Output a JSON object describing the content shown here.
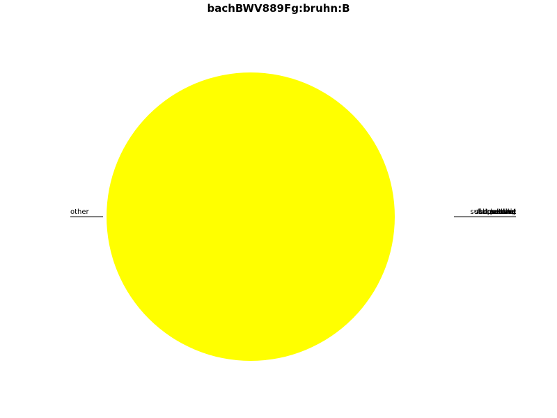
{
  "chart_data": {
    "type": "pie",
    "title": "bachBWV889Fg:bruhn:B",
    "slices": [
      {
        "label": "other",
        "value": 100,
        "color": "#ffff00",
        "label_side": "left"
      },
      {
        "label": "tonic",
        "value": 0,
        "label_side": "right"
      },
      {
        "label": "dominant",
        "value": 0,
        "label_side": "right"
      },
      {
        "label": "subdominant",
        "value": 0,
        "label_side": "right"
      },
      {
        "label": "relative",
        "value": 0,
        "label_side": "right"
      },
      {
        "label": "parallel",
        "value": 0,
        "label_side": "right"
      },
      {
        "label": "mediant",
        "value": 0,
        "label_side": "right"
      },
      {
        "label": "submediant",
        "value": 0,
        "label_side": "right"
      },
      {
        "label": "leading",
        "value": 0,
        "label_side": "right"
      },
      {
        "label": "supertonic",
        "value": 0,
        "label_side": "right"
      },
      {
        "label": "flat-second",
        "value": 0,
        "label_side": "right"
      }
    ]
  }
}
